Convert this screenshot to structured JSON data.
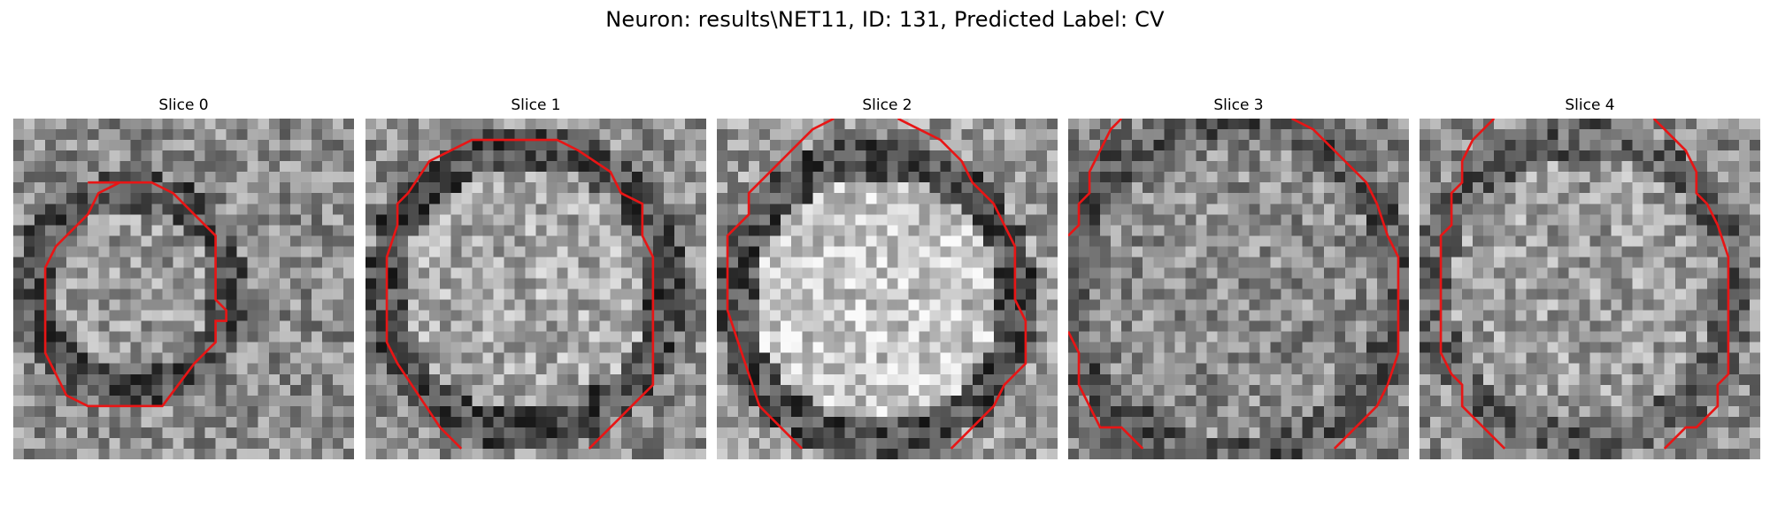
{
  "figure": {
    "title": "Neuron: results\\NET11, ID: 131, Predicted Label: CV"
  },
  "panels": [
    {
      "title": "Slice 0",
      "contour_color": "#e81515"
    },
    {
      "title": "Slice 1",
      "contour_color": "#e81515"
    },
    {
      "title": "Slice 2",
      "contour_color": "#e81515"
    },
    {
      "title": "Slice 3",
      "contour_color": "#e81515"
    },
    {
      "title": "Slice 4",
      "contour_color": "#e81515"
    }
  ]
}
